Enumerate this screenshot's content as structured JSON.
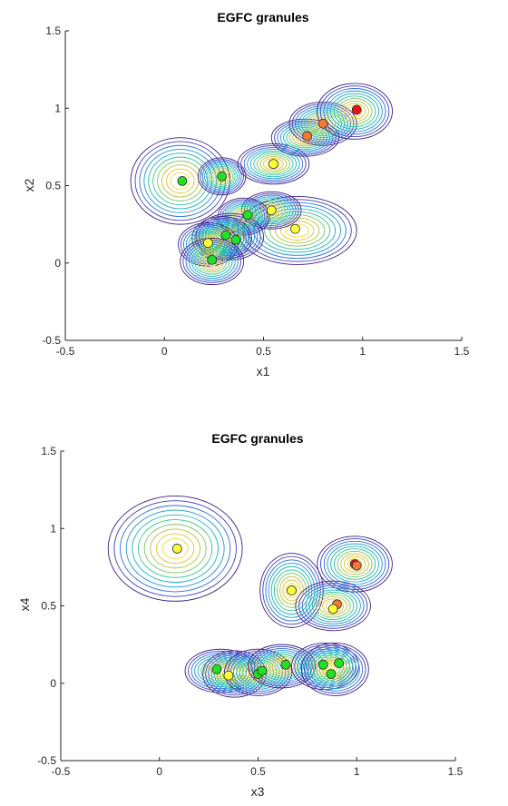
{
  "chart_data": [
    {
      "type": "scatter",
      "title": "EGFC granules",
      "xlabel": "x1",
      "ylabel": "x2",
      "xlim": [
        -0.5,
        1.5
      ],
      "ylim": [
        -0.5,
        1.5
      ],
      "xticks": [
        "-0.5",
        "0",
        "0.5",
        "1",
        "1.5"
      ],
      "yticks": [
        "-0.5",
        "0",
        "0.5",
        "1",
        "1.5"
      ],
      "grid": false,
      "granules": [
        {
          "cx": 0.08,
          "cy": 0.53,
          "rx": 0.25,
          "ry": 0.28
        },
        {
          "cx": 0.29,
          "cy": 0.56,
          "rx": 0.12,
          "ry": 0.12
        },
        {
          "cx": 0.55,
          "cy": 0.64,
          "rx": 0.18,
          "ry": 0.13
        },
        {
          "cx": 0.71,
          "cy": 0.81,
          "rx": 0.17,
          "ry": 0.12
        },
        {
          "cx": 0.8,
          "cy": 0.9,
          "rx": 0.17,
          "ry": 0.14
        },
        {
          "cx": 0.96,
          "cy": 0.98,
          "rx": 0.19,
          "ry": 0.18
        },
        {
          "cx": 0.67,
          "cy": 0.21,
          "rx": 0.3,
          "ry": 0.22
        },
        {
          "cx": 0.54,
          "cy": 0.34,
          "rx": 0.15,
          "ry": 0.12
        },
        {
          "cx": 0.4,
          "cy": 0.3,
          "rx": 0.13,
          "ry": 0.12
        },
        {
          "cx": 0.33,
          "cy": 0.17,
          "rx": 0.17,
          "ry": 0.15
        },
        {
          "cx": 0.29,
          "cy": 0.16,
          "rx": 0.15,
          "ry": 0.14
        },
        {
          "cx": 0.22,
          "cy": 0.12,
          "rx": 0.15,
          "ry": 0.14
        },
        {
          "cx": 0.24,
          "cy": 0.01,
          "rx": 0.16,
          "ry": 0.15
        }
      ],
      "points": [
        {
          "x": 0.09,
          "y": 0.53,
          "color": "#22e022"
        },
        {
          "x": 0.29,
          "y": 0.56,
          "color": "#22e022"
        },
        {
          "x": 0.55,
          "y": 0.64,
          "color": "#ffff33"
        },
        {
          "x": 0.72,
          "y": 0.82,
          "color": "#f07a35"
        },
        {
          "x": 0.8,
          "y": 0.9,
          "color": "#f07a35"
        },
        {
          "x": 0.97,
          "y": 0.99,
          "color": "#ee1111"
        },
        {
          "x": 0.66,
          "y": 0.22,
          "color": "#ffff33"
        },
        {
          "x": 0.54,
          "y": 0.34,
          "color": "#ffff33"
        },
        {
          "x": 0.42,
          "y": 0.31,
          "color": "#22e022"
        },
        {
          "x": 0.31,
          "y": 0.18,
          "color": "#22e022"
        },
        {
          "x": 0.36,
          "y": 0.15,
          "color": "#22e022"
        },
        {
          "x": 0.22,
          "y": 0.13,
          "color": "#ffff33"
        },
        {
          "x": 0.24,
          "y": 0.02,
          "color": "#22e022"
        }
      ]
    },
    {
      "type": "scatter",
      "title": "EGFC granules",
      "xlabel": "x3",
      "ylabel": "x4",
      "xlim": [
        -0.5,
        1.5
      ],
      "ylim": [
        -0.5,
        1.5
      ],
      "xticks": [
        "-0.5",
        "0",
        "0.5",
        "1",
        "1.5"
      ],
      "yticks": [
        "-0.5",
        "0",
        "0.5",
        "1",
        "1.5"
      ],
      "grid": false,
      "granules": [
        {
          "cx": 0.08,
          "cy": 0.87,
          "rx": 0.34,
          "ry": 0.34
        },
        {
          "cx": 0.67,
          "cy": 0.6,
          "rx": 0.16,
          "ry": 0.24
        },
        {
          "cx": 0.99,
          "cy": 0.77,
          "rx": 0.19,
          "ry": 0.18
        },
        {
          "cx": 0.88,
          "cy": 0.5,
          "rx": 0.19,
          "ry": 0.16
        },
        {
          "cx": 0.31,
          "cy": 0.08,
          "rx": 0.18,
          "ry": 0.14
        },
        {
          "cx": 0.38,
          "cy": 0.06,
          "rx": 0.16,
          "ry": 0.15
        },
        {
          "cx": 0.5,
          "cy": 0.07,
          "rx": 0.17,
          "ry": 0.15
        },
        {
          "cx": 0.62,
          "cy": 0.11,
          "rx": 0.17,
          "ry": 0.14
        },
        {
          "cx": 0.84,
          "cy": 0.11,
          "rx": 0.17,
          "ry": 0.15
        },
        {
          "cx": 0.89,
          "cy": 0.09,
          "rx": 0.17,
          "ry": 0.17
        }
      ],
      "points": [
        {
          "x": 0.09,
          "y": 0.87,
          "color": "#ffff33"
        },
        {
          "x": 0.67,
          "y": 0.6,
          "color": "#ffff33"
        },
        {
          "x": 0.99,
          "y": 0.77,
          "color": "#ee1111"
        },
        {
          "x": 1.0,
          "y": 0.76,
          "color": "#f07a35"
        },
        {
          "x": 0.9,
          "y": 0.51,
          "color": "#f07a35"
        },
        {
          "x": 0.88,
          "y": 0.48,
          "color": "#ffff33"
        },
        {
          "x": 0.29,
          "y": 0.09,
          "color": "#22e022"
        },
        {
          "x": 0.35,
          "y": 0.05,
          "color": "#ffff33"
        },
        {
          "x": 0.5,
          "y": 0.06,
          "color": "#22e022"
        },
        {
          "x": 0.52,
          "y": 0.08,
          "color": "#22e022"
        },
        {
          "x": 0.64,
          "y": 0.12,
          "color": "#22e022"
        },
        {
          "x": 0.83,
          "y": 0.12,
          "color": "#22e022"
        },
        {
          "x": 0.91,
          "y": 0.13,
          "color": "#22e022"
        },
        {
          "x": 0.87,
          "y": 0.06,
          "color": "#22e022"
        }
      ]
    }
  ],
  "colors": {
    "contour_levels": [
      "#3b1f86",
      "#3f3fbf",
      "#2d6fdb",
      "#1f96d4",
      "#16b3bf",
      "#2bc496",
      "#74ca5f",
      "#b9c23a",
      "#e6c12e",
      "#f5dc2c"
    ]
  }
}
